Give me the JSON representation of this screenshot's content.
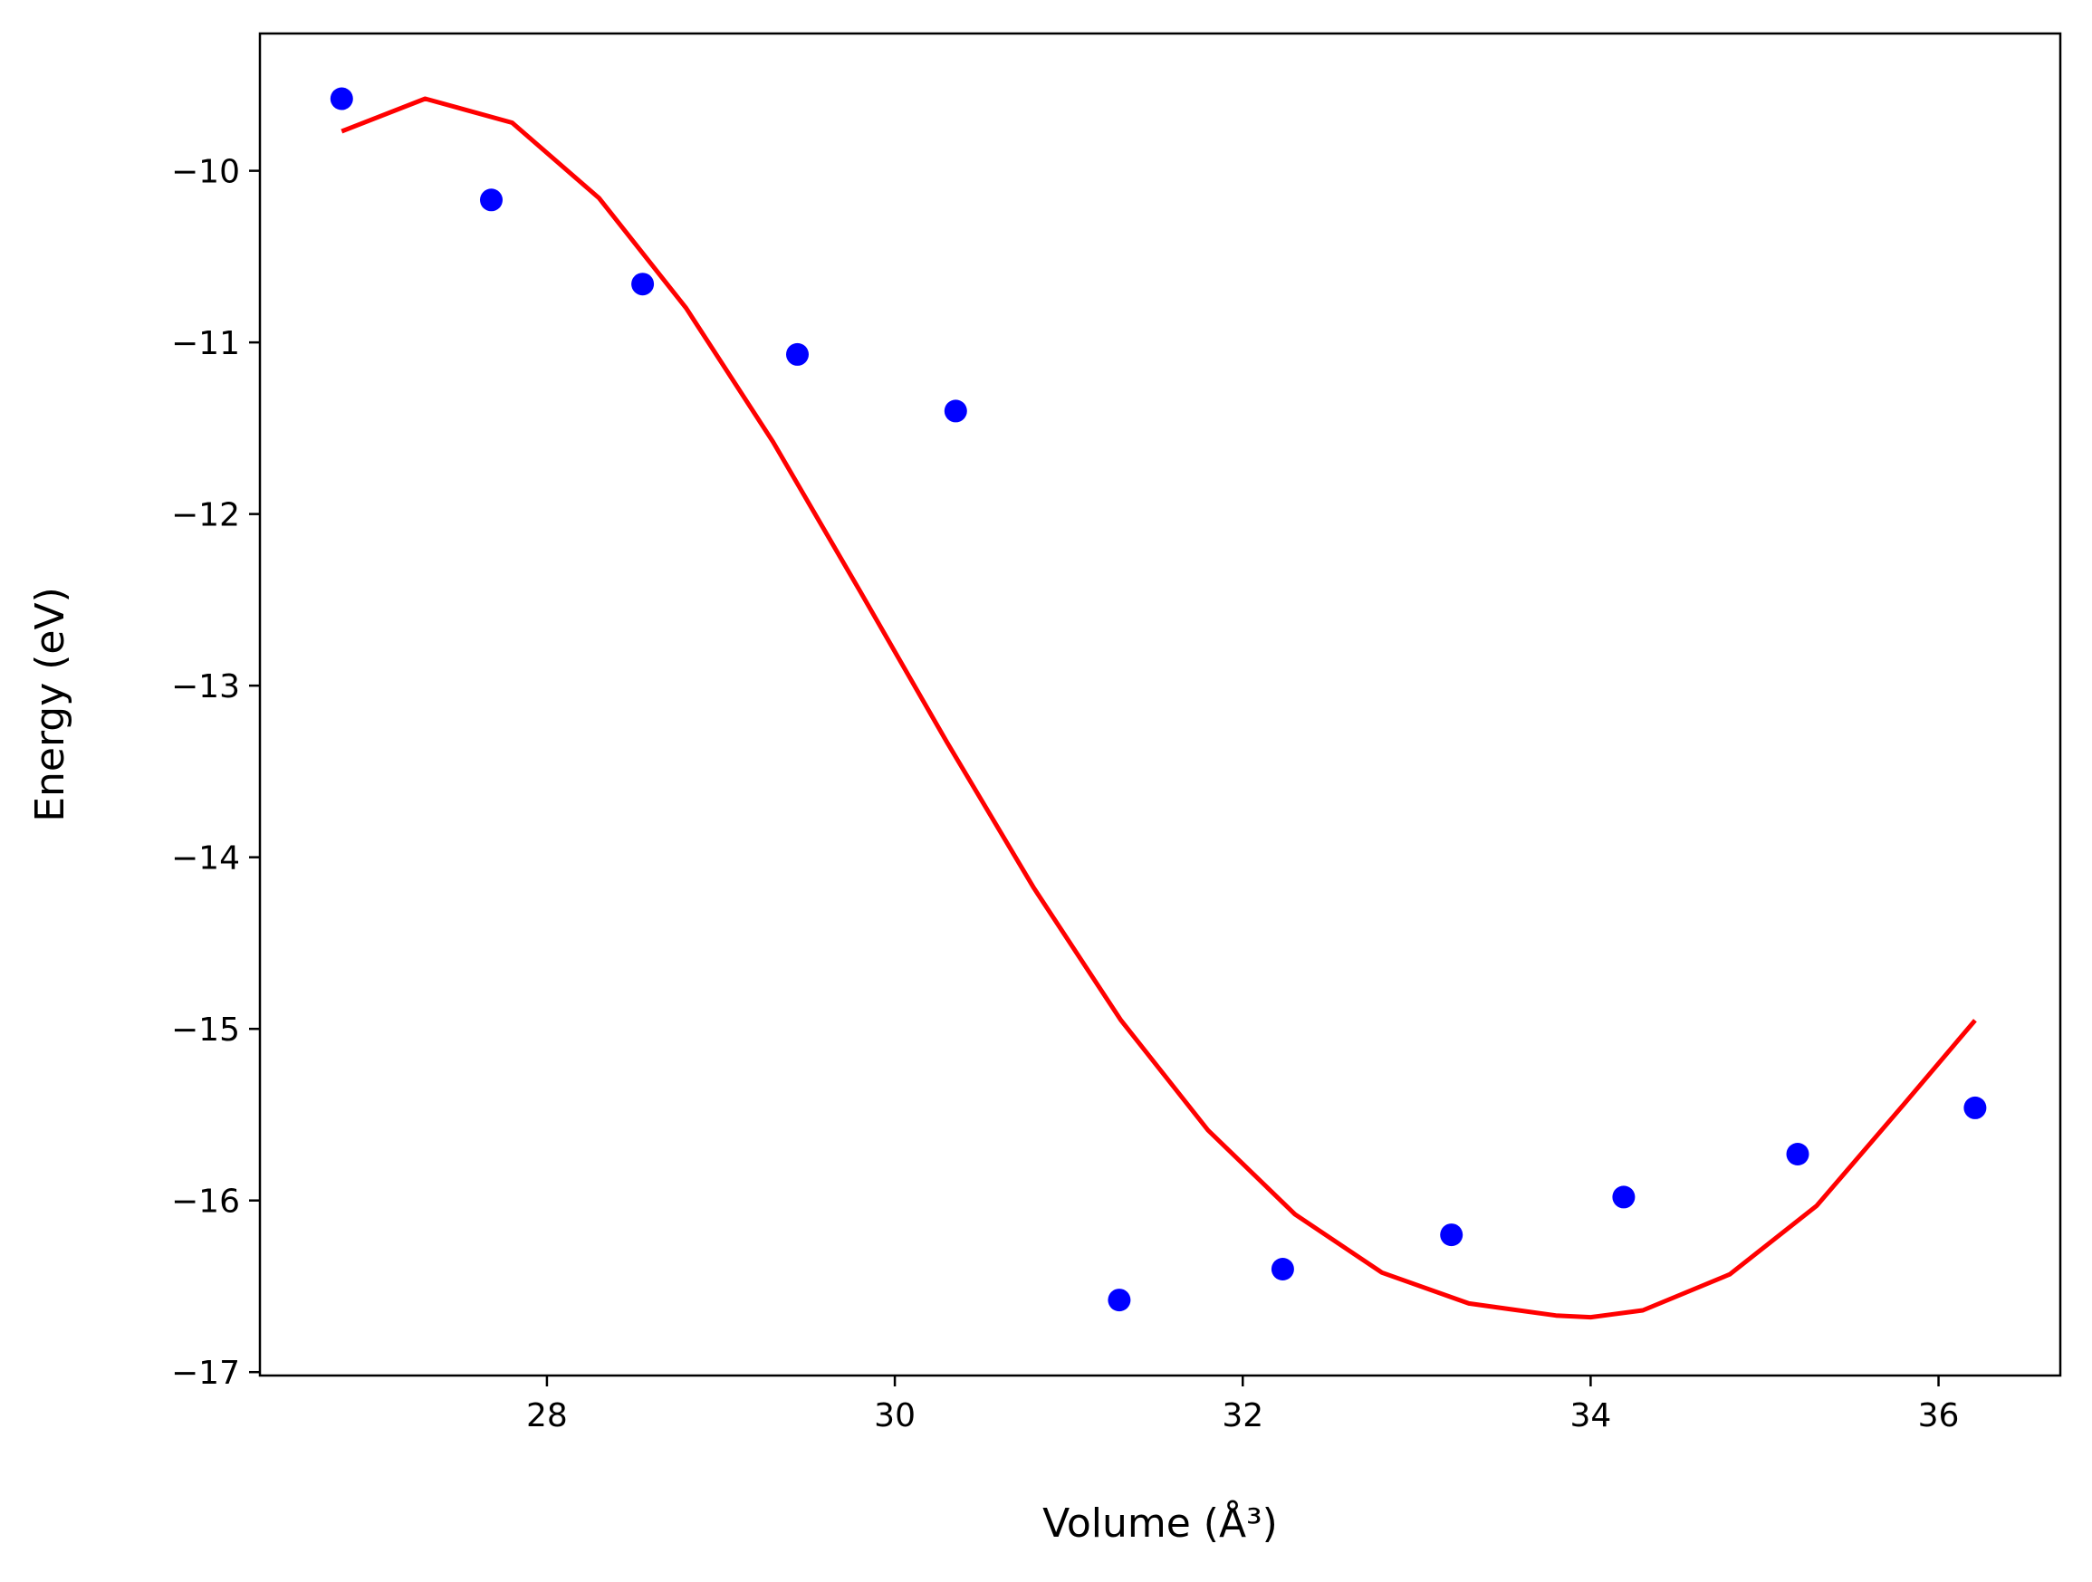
{
  "chart_data": {
    "type": "scatter",
    "xlabel": "Volume (Å³)",
    "ylabel": "Energy (eV)",
    "xlim": [
      26.35,
      36.7
    ],
    "ylim": [
      -17.02,
      -9.2
    ],
    "xticks": [
      28,
      30,
      32,
      34,
      36
    ],
    "yticks": [
      -10,
      -11,
      -12,
      -13,
      -14,
      -15,
      -16,
      -17
    ],
    "grid": false,
    "series": [
      {
        "kind": "points",
        "color": "#0000ff",
        "x": [
          26.82,
          27.68,
          28.55,
          29.44,
          30.35,
          31.29,
          32.23,
          33.2,
          34.19,
          35.19,
          36.21
        ],
        "y": [
          -9.58,
          -10.17,
          -10.66,
          -11.07,
          -11.4,
          -16.58,
          -16.4,
          -16.2,
          -15.98,
          -15.73,
          -15.46
        ]
      },
      {
        "kind": "line",
        "color": "#ff0000",
        "x": [
          26.82,
          27.3,
          27.8,
          28.3,
          28.8,
          29.3,
          29.8,
          30.3,
          30.8,
          31.3,
          31.8,
          32.3,
          32.8,
          33.3,
          33.8,
          34.0,
          34.3,
          34.8,
          35.3,
          35.8,
          36.21
        ],
        "y": [
          -9.77,
          -9.58,
          -9.72,
          -10.16,
          -10.8,
          -11.58,
          -12.45,
          -13.33,
          -14.18,
          -14.95,
          -15.59,
          -16.08,
          -16.42,
          -16.6,
          -16.67,
          -16.68,
          -16.64,
          -16.43,
          -16.03,
          -15.44,
          -14.95
        ]
      }
    ]
  }
}
